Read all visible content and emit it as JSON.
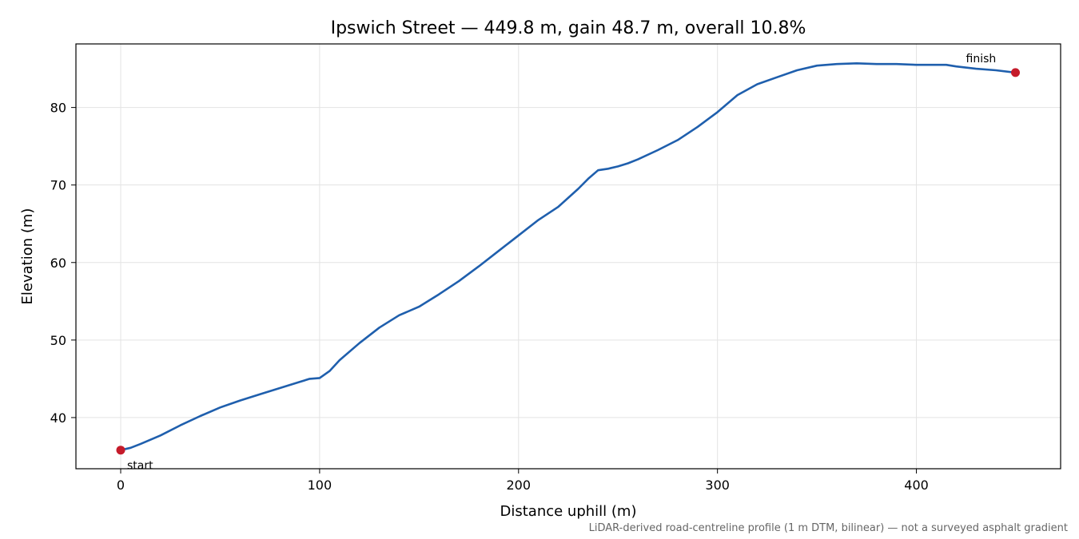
{
  "chart_data": {
    "type": "line",
    "title": "Ipswich Street — 449.8 m, gain 48.7 m, overall 10.8%",
    "xlabel": "Distance uphill (m)",
    "ylabel": "Elevation (m)",
    "xlim": [
      -22.5,
      472.5
    ],
    "ylim": [
      33.4,
      88.2
    ],
    "xticks": [
      0,
      100,
      200,
      300,
      400
    ],
    "yticks": [
      40,
      50,
      60,
      70,
      80
    ],
    "grid": true,
    "line_color": "#1f5fad",
    "marker_color": "#c51b2a",
    "series": [
      {
        "x": [
          0,
          5,
          10,
          20,
          30,
          40,
          50,
          60,
          70,
          80,
          90,
          95,
          100,
          105,
          110,
          120,
          130,
          140,
          150,
          160,
          170,
          180,
          190,
          200,
          210,
          220,
          230,
          235,
          240,
          245,
          250,
          255,
          260,
          270,
          280,
          290,
          300,
          310,
          320,
          330,
          340,
          350,
          360,
          370,
          380,
          390,
          400,
          410,
          415,
          420,
          430,
          440,
          449.8
        ],
        "y": [
          35.8,
          36.1,
          36.6,
          37.7,
          39.0,
          40.2,
          41.3,
          42.2,
          43.0,
          43.8,
          44.6,
          45.0,
          45.1,
          46.0,
          47.4,
          49.6,
          51.6,
          53.2,
          54.3,
          55.9,
          57.6,
          59.5,
          61.5,
          63.5,
          65.5,
          67.2,
          69.5,
          70.8,
          71.9,
          72.1,
          72.4,
          72.8,
          73.3,
          74.5,
          75.8,
          77.5,
          79.4,
          81.6,
          83.0,
          83.9,
          84.8,
          85.4,
          85.6,
          85.7,
          85.6,
          85.6,
          85.5,
          85.5,
          85.5,
          85.3,
          85.0,
          84.8,
          84.5
        ]
      }
    ],
    "annotations": {
      "start": {
        "label": "start",
        "x": 0,
        "y": 35.8
      },
      "finish": {
        "label": "finish",
        "x": 449.8,
        "y": 84.5
      }
    },
    "footnote": "LiDAR-derived road-centreline profile (1 m DTM, bilinear) — not a surveyed asphalt gradient"
  }
}
